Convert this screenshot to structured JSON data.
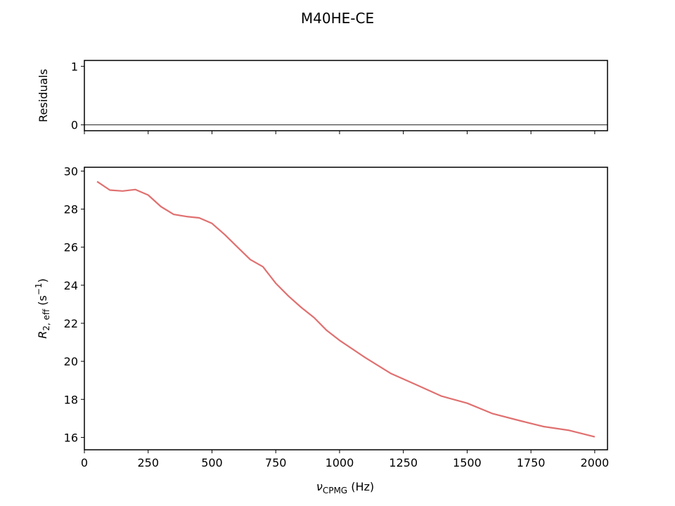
{
  "chart_data": {
    "title": "M40HE-CE",
    "residuals": {
      "type": "line",
      "ylabel": "Residuals",
      "yticks": [
        0,
        1
      ],
      "ylim": [
        -0.1,
        1.1
      ],
      "zero_line": true
    },
    "main": {
      "type": "line",
      "xlabel_main": "ν",
      "xlabel_sub": "CPMG",
      "xlabel_unit": " (Hz)",
      "ylabel_main": "R",
      "ylabel_sub": "2, eff",
      "ylabel_unit_pre": " (s",
      "ylabel_unit_sup": "−1",
      "ylabel_unit_post": ")",
      "xlim": [
        0,
        2050
      ],
      "ylim": [
        15.35,
        30.2
      ],
      "xticks": [
        0,
        250,
        500,
        750,
        1000,
        1250,
        1500,
        1750,
        2000
      ],
      "yticks": [
        16,
        18,
        20,
        22,
        24,
        26,
        28,
        30
      ],
      "series": [
        {
          "color": "#e07070",
          "x": [
            50,
            100,
            150,
            200,
            250,
            300,
            350,
            400,
            450,
            500,
            550,
            600,
            650,
            700,
            750,
            800,
            850,
            900,
            950,
            1000,
            1100,
            1200,
            1300,
            1400,
            1500,
            1600,
            1700,
            1800,
            1900,
            2000
          ],
          "y": [
            29.45,
            29.0,
            28.95,
            29.03,
            28.74,
            28.13,
            27.72,
            27.61,
            27.54,
            27.25,
            26.66,
            26.0,
            25.35,
            24.97,
            24.1,
            23.43,
            22.83,
            22.3,
            21.62,
            21.1,
            20.2,
            19.37,
            18.77,
            18.17,
            17.8,
            17.25,
            16.9,
            16.57,
            16.37,
            16.03
          ]
        }
      ]
    }
  }
}
